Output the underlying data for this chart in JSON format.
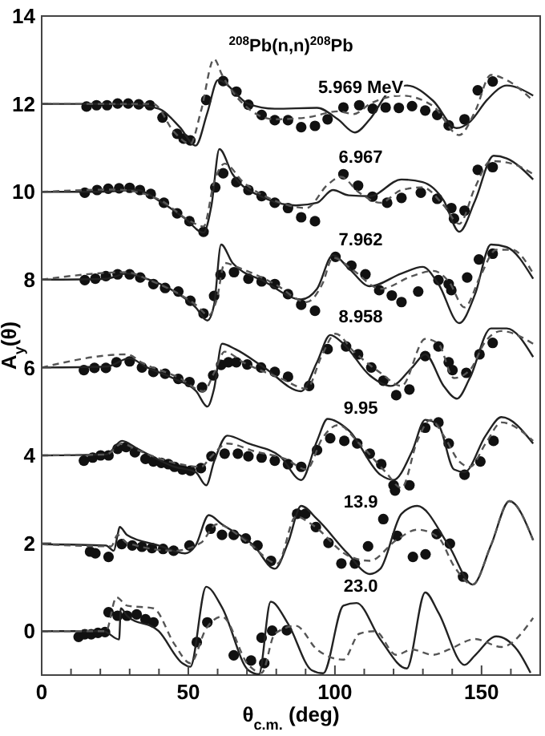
{
  "chart_data": {
    "type": "line",
    "title": "$^{208}$Pb(n,n)$^{208}$Pb",
    "xlabel": "θ$_{c.m.}$ (deg)",
    "ylabel": "A$_{y}$(θ)",
    "xlim": [
      0,
      170
    ],
    "ylim": [
      -1,
      14
    ],
    "xticks": [
      0,
      {
        "value": 10,
        "label": null
      },
      {
        "value": 20,
        "label": null
      },
      {
        "value": 30,
        "label": null
      },
      {
        "value": 40,
        "label": null
      },
      50,
      {
        "value": 60,
        "label": null
      },
      {
        "value": 70,
        "label": null
      },
      {
        "value": 80,
        "label": null
      },
      {
        "value": 90,
        "label": null
      },
      100,
      {
        "value": 110,
        "label": null
      },
      {
        "value": 120,
        "label": null
      },
      {
        "value": 130,
        "label": null
      },
      {
        "value": 140,
        "label": null
      },
      150,
      {
        "value": 160,
        "label": null
      }
    ],
    "yticks": [
      0,
      2,
      4,
      6,
      8,
      10,
      12,
      14
    ],
    "annotations": [
      "5.969 MeV",
      "6.967",
      "7.962",
      "8.958",
      "9.95",
      "13.9",
      "23.0"
    ],
    "series": [
      {
        "type": "scatter",
        "marker": "circle",
        "color": "#111111",
        "x": [
          15.3,
          18.7,
          22.3,
          25.9,
          29.5,
          33.1,
          36.9,
          41.2,
          46.2,
          48.4,
          50.7,
          56.1,
          61.9,
          66.4,
          70.5,
          75.0,
          79.5,
          84.0,
          88.5,
          93.2,
          97.5,
          102.9,
          108.3,
          112.9,
          117.3,
          121.8,
          126.3,
          130.8,
          134.9,
          138.8,
          144.2,
          148.7,
          153.8
        ],
        "values": [
          11.94,
          11.97,
          11.97,
          12.01,
          12.01,
          11.99,
          11.97,
          11.69,
          11.32,
          11.21,
          11.17,
          12.09,
          12.52,
          12.28,
          11.98,
          11.75,
          11.63,
          11.63,
          11.47,
          11.5,
          11.65,
          11.92,
          11.97,
          11.89,
          11.92,
          11.91,
          11.95,
          11.85,
          11.75,
          11.51,
          11.65,
          12.31,
          12.51
        ]
      },
      {
        "line_style": "solid",
        "color": "#222222",
        "x": [
          0,
          20,
          30,
          39.9,
          47.1,
          52.5,
          56.5,
          60.1,
          70.5,
          79.5,
          93.9,
          101,
          106.8,
          111.9,
          119,
          124.5,
          133.5,
          141.5,
          146,
          152,
          158.6,
          167.6
        ],
        "values": [
          12,
          12,
          11.99,
          11.89,
          11.47,
          11.05,
          11.8,
          12.54,
          12.0,
          11.89,
          11.91,
          11.65,
          11.35,
          11.65,
          12.31,
          12.42,
          12.07,
          11.45,
          11.59,
          12.1,
          12.42,
          12.19
        ]
      },
      {
        "line_style": "dashed",
        "color": "#555555",
        "x": [
          0,
          20,
          38,
          45.3,
          50.7,
          54.3,
          58.8,
          61.5,
          68.7,
          79.5,
          90.3,
          101.1,
          106.5,
          111.9,
          122.7,
          133.5,
          142.4,
          147.8,
          153.2,
          158.6,
          167.6
        ],
        "values": [
          12,
          12,
          12,
          11.35,
          11.09,
          11.83,
          13.02,
          12.66,
          12.0,
          11.65,
          11.69,
          11.83,
          11.77,
          12.0,
          12.19,
          11.95,
          11.29,
          11.83,
          12.66,
          12.54,
          12.07
        ]
      },
      {
        "type": "scatter",
        "marker": "circle",
        "color": "#111111",
        "x": [
          14.7,
          18.9,
          22.7,
          26.4,
          30.0,
          33.5,
          37.2,
          41.7,
          46.2,
          50.4,
          55.2,
          59.2,
          61.9,
          66.4,
          70.5,
          75.0,
          79.5,
          84.0,
          88.5,
          93.2,
          102.9,
          107.9,
          112.8,
          117.8,
          122.7,
          129.3,
          134.9,
          139.7,
          140.6,
          144.2,
          148.7,
          153.8
        ],
        "values": [
          9.98,
          10.04,
          10.07,
          10.08,
          10.09,
          10.04,
          9.95,
          9.75,
          9.51,
          9.33,
          9.09,
          10.1,
          10.42,
          10.22,
          10.04,
          9.9,
          9.75,
          9.63,
          9.42,
          9.33,
          10.4,
          10.14,
          9.89,
          9.75,
          9.86,
          9.98,
          9.84,
          9.63,
          9.39,
          9.57,
          10.5,
          10.56
        ]
      },
      {
        "line_style": "solid",
        "color": "#222222",
        "x": [
          0,
          20,
          32.7,
          39.9,
          48.9,
          55.2,
          57.9,
          60.6,
          65.1,
          75.9,
          86.7,
          93.9,
          99.3,
          104.7,
          111.9,
          122.7,
          129.9,
          137.1,
          142.4,
          147.8,
          154.1,
          158.6,
          167.6
        ],
        "values": [
          10,
          10,
          10.04,
          9.8,
          9.39,
          9.07,
          9.69,
          10.97,
          10.4,
          9.86,
          9.69,
          9.75,
          10.04,
          9.92,
          9.9,
          10.28,
          10.22,
          9.8,
          9.09,
          9.8,
          10.82,
          10.76,
          10.28
        ]
      },
      {
        "line_style": "dashed",
        "color": "#555555",
        "x": [
          0,
          25,
          39.9,
          50.7,
          55.2,
          58.8,
          62.4,
          68.7,
          79.5,
          90.3,
          97.5,
          102.0,
          108.3,
          115.5,
          122.7,
          129.9,
          137.1,
          142.4,
          147.8,
          153.2,
          160.4,
          167.6
        ],
        "values": [
          10,
          10.05,
          9.83,
          9.33,
          9.21,
          10.22,
          10.64,
          10.22,
          9.8,
          9.63,
          10.16,
          10.34,
          9.98,
          9.75,
          10.04,
          10.1,
          9.69,
          9.27,
          10.1,
          10.7,
          10.64,
          10.4
        ]
      },
      {
        "type": "scatter",
        "marker": "circle",
        "color": "#111111",
        "x": [
          14.7,
          18.3,
          21.9,
          25.9,
          30.0,
          33.6,
          38.1,
          42.1,
          46.6,
          50.7,
          55.2,
          58.8,
          61.0,
          65.6,
          70.5,
          75.0,
          79.5,
          84.0,
          88.5,
          93.2,
          100.2,
          105.6,
          110.4,
          115.1,
          119.4,
          122.7,
          128.4,
          135.3,
          138.8,
          139.7,
          145.1,
          149.1,
          153.8
        ],
        "values": [
          7.99,
          8.02,
          8.08,
          8.12,
          8.12,
          8.05,
          7.9,
          7.81,
          7.73,
          7.52,
          7.23,
          7.63,
          8.11,
          8.17,
          8.02,
          7.96,
          7.9,
          7.67,
          7.43,
          7.29,
          8.52,
          8.32,
          8.12,
          7.76,
          7.64,
          7.49,
          7.73,
          7.99,
          7.9,
          7.76,
          8.05,
          8.46,
          8.59
        ]
      },
      {
        "line_style": "solid",
        "color": "#222222",
        "x": [
          0,
          22,
          29.1,
          34.5,
          45.3,
          52.5,
          56.5,
          58.8,
          61.2,
          65.1,
          75.9,
          88.5,
          93.9,
          99.3,
          104.7,
          111.9,
          122.7,
          129.9,
          135.3,
          142.4,
          147.8,
          153.2,
          158.6,
          167.6
        ],
        "values": [
          8,
          8.02,
          8.14,
          8.05,
          7.73,
          7.37,
          7.07,
          7.43,
          8.8,
          8.38,
          7.96,
          7.55,
          7.79,
          8.56,
          8.26,
          7.85,
          8.14,
          8.29,
          7.9,
          7.01,
          7.67,
          8.8,
          8.74,
          8.02
        ]
      },
      {
        "line_style": "dashed",
        "color": "#555555",
        "x": [
          0,
          29.1,
          36.3,
          52.5,
          57.0,
          59.7,
          62.4,
          66.9,
          79.5,
          90.3,
          95.7,
          99.3,
          106.5,
          115.5,
          126.3,
          133.5,
          138.8,
          144.2,
          149.6,
          155.0,
          160.4,
          167.6
        ],
        "values": [
          8,
          8.17,
          8.0,
          7.43,
          7.19,
          7.55,
          8.38,
          8.28,
          7.9,
          7.49,
          7.9,
          8.5,
          8.2,
          7.79,
          8.08,
          8.2,
          7.96,
          7.37,
          8.08,
          8.68,
          8.68,
          8.14
        ]
      },
      {
        "type": "scatter",
        "marker": "circle",
        "color": "#111111",
        "x": [
          14.4,
          18.0,
          21.9,
          25.5,
          30.0,
          34.2,
          38.1,
          42.1,
          46.6,
          50.4,
          54.7,
          58.5,
          61.2,
          63.7,
          66.4,
          70.1,
          74.8,
          79.5,
          84.0,
          91.2,
          97.5,
          103.8,
          107.9,
          112.4,
          116.5,
          120.9,
          125.4,
          130.8,
          135.3,
          138.8,
          140.1,
          144.8,
          149.3,
          153.8
        ],
        "values": [
          5.94,
          5.99,
          5.99,
          6.12,
          6.14,
          6.0,
          5.9,
          5.86,
          5.74,
          5.67,
          5.55,
          5.82,
          6.06,
          6.12,
          6.12,
          6.07,
          6.0,
          5.9,
          5.79,
          5.58,
          6.42,
          6.48,
          6.3,
          6.0,
          5.7,
          5.37,
          5.5,
          6.26,
          6.48,
          6.12,
          5.94,
          5.88,
          6.3,
          6.56
        ]
      },
      {
        "line_style": "solid",
        "color": "#222222",
        "x": [
          0,
          22,
          30.0,
          35.4,
          45.3,
          52.7,
          56.5,
          58.8,
          61.5,
          66.0,
          75.9,
          88.5,
          93.9,
          98.4,
          102.9,
          111.9,
          119.1,
          126.3,
          130.8,
          137.1,
          141.6,
          146.0,
          153.2,
          158.6,
          167.6
        ],
        "values": [
          6,
          6.02,
          6.21,
          6.02,
          5.74,
          5.46,
          5.11,
          5.52,
          6.54,
          6.42,
          6.0,
          5.46,
          6.12,
          6.74,
          6.54,
          5.82,
          5.58,
          6.0,
          6.3,
          5.58,
          5.29,
          5.76,
          6.89,
          6.89,
          6.24
        ]
      },
      {
        "line_style": "dashed",
        "color": "#555555",
        "x": [
          0,
          29.1,
          34.5,
          47.1,
          55.2,
          58.8,
          62.4,
          68.7,
          81.3,
          90.3,
          95.7,
          100.2,
          106.5,
          115.5,
          122.7,
          130.8,
          135.3,
          140.6,
          146.0,
          151.4,
          156.8,
          167.6
        ],
        "values": [
          6,
          6.3,
          6.1,
          5.76,
          5.46,
          5.88,
          6.36,
          6.12,
          5.76,
          5.52,
          6.3,
          6.77,
          6.36,
          5.88,
          5.58,
          6.65,
          6.54,
          5.76,
          5.94,
          6.6,
          6.83,
          6.54
        ]
      },
      {
        "type": "scatter",
        "marker": "circle",
        "color": "#111111",
        "x": [
          14.4,
          17.4,
          20.1,
          22.8,
          25.9,
          28.8,
          31.8,
          35.4,
          38.1,
          40.8,
          43.2,
          45.3,
          48.0,
          50.7,
          54.3,
          57.9,
          62.4,
          66.9,
          70.5,
          75.0,
          79.5,
          84.0,
          88.5,
          93.9,
          98.4,
          103.2,
          107.6,
          111.9,
          115.8,
          120.0,
          120.5,
          125.4,
          130.8,
          135.3,
          138.8,
          144.2,
          149.6,
          154.1
        ],
        "values": [
          3.88,
          3.95,
          4.0,
          4.0,
          4.15,
          4.19,
          4.07,
          3.92,
          3.86,
          3.83,
          3.8,
          3.74,
          3.68,
          3.65,
          3.71,
          3.98,
          4.04,
          4.04,
          3.98,
          3.95,
          3.88,
          3.8,
          3.74,
          4.12,
          4.39,
          4.33,
          4.27,
          4.04,
          3.8,
          3.32,
          3.2,
          3.32,
          4.63,
          4.75,
          4.27,
          3.56,
          3.86,
          4.33
        ]
      },
      {
        "line_style": "solid",
        "color": "#222222",
        "x": [
          0,
          22,
          27.4,
          32.7,
          45.3,
          52.5,
          56.1,
          58.8,
          63.3,
          70.5,
          81.3,
          88.5,
          93.9,
          97.5,
          104.7,
          115.5,
          120.0,
          126.3,
          130.8,
          135.3,
          140.6,
          144.2,
          151.4,
          156.8,
          167.6
        ],
        "values": [
          4,
          4.02,
          4.33,
          4.15,
          3.74,
          3.62,
          3.32,
          3.86,
          4.45,
          4.27,
          3.98,
          3.44,
          4.33,
          4.83,
          4.57,
          3.56,
          3.44,
          4.09,
          4.81,
          4.69,
          3.68,
          3.62,
          4.45,
          4.87,
          4.27
        ]
      },
      {
        "line_style": "dashed",
        "color": "#555555",
        "x": [
          0,
          22,
          27.4,
          32.7,
          47.1,
          54.3,
          57.9,
          63.3,
          72.7,
          83.1,
          90.3,
          95.7,
          101.1,
          108.3,
          117.3,
          122.7,
          128.1,
          132.6,
          137.1,
          142.4,
          146.0,
          151.4,
          156.8,
          167.6
        ],
        "values": [
          4,
          4.02,
          4.27,
          4.12,
          3.8,
          3.74,
          3.98,
          4.27,
          4.09,
          3.92,
          3.68,
          4.39,
          4.69,
          4.27,
          3.62,
          3.26,
          4.33,
          4.81,
          4.45,
          3.86,
          3.74,
          4.27,
          4.75,
          4.33
        ]
      },
      {
        "type": "scatter",
        "marker": "circle",
        "color": "#111111",
        "x": [
          16.5,
          18.3,
          22.8,
          27.3,
          30.9,
          34.2,
          37.6,
          41.4,
          45.0,
          50.4,
          57.6,
          61.5,
          65.5,
          69.6,
          73.6,
          78.2,
          87.1,
          89.9,
          93.5,
          97.8,
          102.2,
          106.8,
          111.3,
          116.5,
          121.2,
          126.6,
          130.9,
          134.7,
          139.2,
          143.7
        ],
        "values": [
          1.81,
          1.77,
          1.69,
          1.98,
          1.95,
          1.92,
          1.89,
          1.87,
          1.83,
          1.95,
          2.33,
          2.19,
          2.19,
          2.11,
          1.95,
          1.6,
          2.67,
          2.67,
          2.37,
          2.01,
          1.54,
          1.54,
          1.93,
          2.55,
          2.17,
          1.69,
          1.75,
          2.21,
          1.99,
          1.24
        ]
      },
      {
        "line_style": "solid",
        "color": "#222222",
        "x": [
          0,
          21.9,
          24.6,
          25.9,
          26.6,
          29.1,
          39.9,
          48.9,
          52.5,
          57.0,
          61.5,
          72.3,
          79.5,
          84.0,
          88.5,
          93.9,
          104.3,
          111.9,
          115.5,
          122.7,
          128.1,
          138.8,
          147.0,
          153.2,
          159.5,
          167.6
        ],
        "values": [
          1.98,
          1.95,
          1.83,
          2.19,
          2.37,
          2.19,
          1.95,
          1.77,
          1.95,
          2.64,
          2.43,
          1.95,
          1.42,
          2.01,
          2.85,
          2.55,
          1.77,
          1.3,
          1.42,
          2.67,
          2.85,
          1.95,
          1.06,
          1.95,
          2.96,
          2.07
        ]
      },
      {
        "line_style": "dashed",
        "color": "#555555",
        "x": [
          0,
          23.7,
          25.9,
          29.1,
          45.3,
          54.3,
          59.7,
          70.5,
          80.4,
          86.7,
          92.1,
          104.7,
          111.9,
          120.9,
          128.1,
          135.3,
          140.6,
          147.0,
          153.2,
          159.5,
          167.6
        ],
        "values": [
          1.98,
          1.93,
          2.19,
          2.01,
          1.83,
          2.01,
          2.43,
          2.01,
          1.54,
          2.61,
          2.43,
          1.71,
          1.6,
          2.07,
          2.31,
          2.13,
          1.48,
          1.06,
          1.95,
          2.96,
          2.07
        ]
      },
      {
        "type": "scatter",
        "marker": "circle",
        "color": "#111111",
        "x": [
          12.6,
          14.7,
          16.9,
          19.2,
          21.6,
          22.8,
          25.9,
          29.1,
          32.4,
          35.4,
          38.1,
          52.9,
          56.5,
          65.5,
          71.4,
          75.0,
          75.9,
          78.6,
          83.6
        ],
        "values": [
          -0.13,
          -0.07,
          -0.07,
          -0.04,
          -0.02,
          0.43,
          0.35,
          0.35,
          0.38,
          0.27,
          0.2,
          -0.25,
          0.2,
          -0.55,
          -0.67,
          -0.15,
          -0.73,
          0.01,
          0.02
        ]
      },
      {
        "line_style": "solid",
        "color": "#222222",
        "x": [
          0,
          21.0,
          26.4,
          27.0,
          29.1,
          39.9,
          48.0,
          50.7,
          56.1,
          61.5,
          70.5,
          74.1,
          78.1,
          84.0,
          92.1,
          96.0,
          102.9,
          107.4,
          115.5,
          124.5,
          130.8,
          135.3,
          144.2,
          147.8,
          155.0,
          162.2,
          166.7
        ],
        "values": [
          0,
          0,
          -0.19,
          0.52,
          0.35,
          0,
          -0.73,
          -0.81,
          1.01,
          0.54,
          -0.89,
          -0.98,
          0.67,
          0.17,
          -0.89,
          -0.96,
          0.58,
          0.64,
          -0.19,
          -0.85,
          0.88,
          0.42,
          -0.77,
          -0.55,
          -0.12,
          -0.43,
          -0.95
        ]
      },
      {
        "line_style": "dashed",
        "color": "#555555",
        "x": [
          0,
          21.9,
          25.5,
          29.1,
          38.1,
          45.3,
          50.7,
          56.1,
          61.5,
          70.5,
          75.0,
          79.5,
          86.7,
          93.9,
          102.9,
          108.3,
          113.7,
          120.9,
          126.3,
          133.5,
          138.8,
          147.8,
          156.8,
          167.6
        ],
        "values": [
          0,
          0,
          0.77,
          0.58,
          0.52,
          -0.3,
          -0.73,
          0.06,
          0.33,
          -0.77,
          -0.95,
          -0.06,
          0.12,
          -0.42,
          -0.65,
          -0.06,
          0,
          -0.54,
          -0.42,
          -0.54,
          -0.42,
          -0.18,
          -0.36,
          0.3
        ]
      }
    ]
  }
}
